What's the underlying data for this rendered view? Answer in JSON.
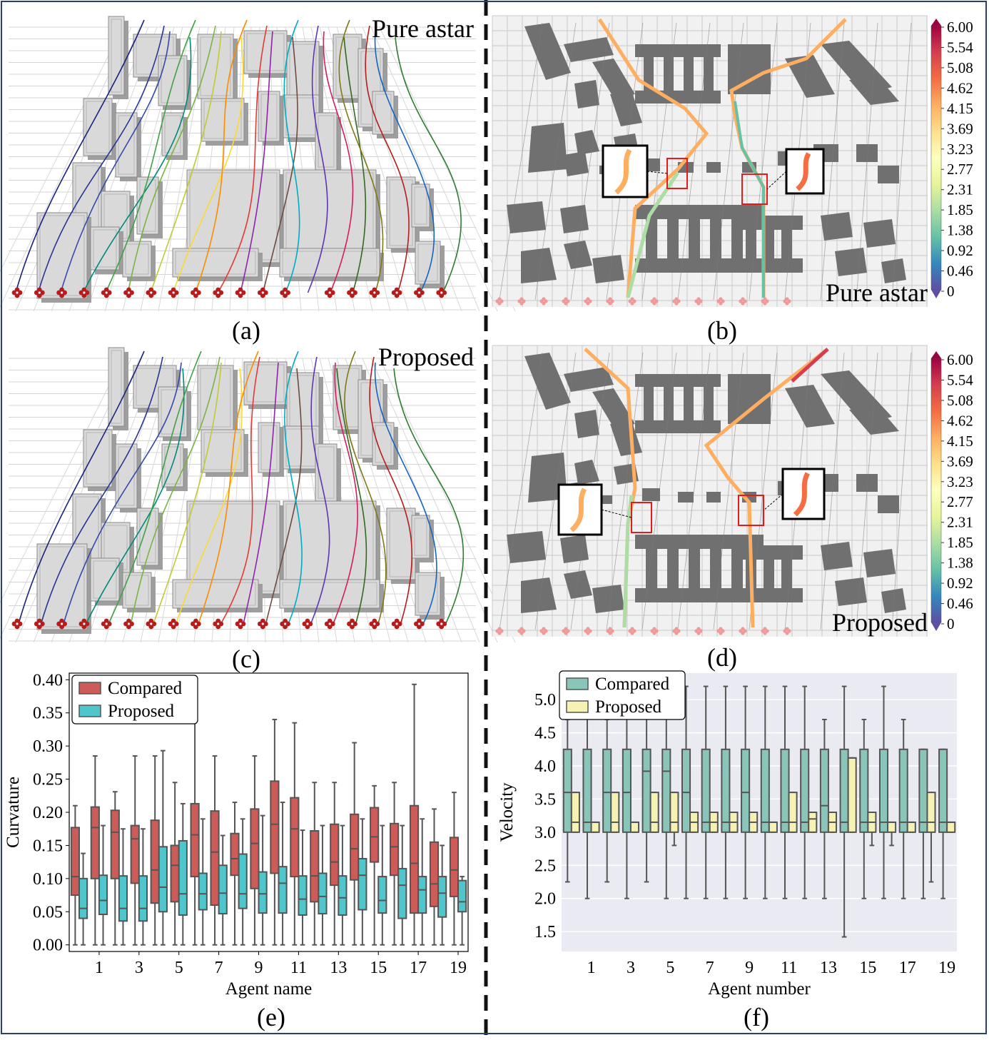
{
  "panels": {
    "a": {
      "caption": "(a)",
      "label": "Pure astar"
    },
    "b": {
      "caption": "(b)",
      "label": "Pure astar"
    },
    "c": {
      "caption": "(c)",
      "label": "Proposed"
    },
    "d": {
      "caption": "(d)",
      "label": "Proposed"
    },
    "e": {
      "caption": "(e)"
    },
    "f": {
      "caption": "(f)"
    }
  },
  "colorbar": {
    "ticks": [
      "6.00",
      "5.54",
      "5.08",
      "4.62",
      "4.15",
      "3.69",
      "3.23",
      "2.77",
      "2.31",
      "1.85",
      "1.38",
      "0.92",
      "0.46",
      "0"
    ],
    "colors": [
      "#9e0142",
      "#d53e4f",
      "#f46d43",
      "#fdae61",
      "#fee08b",
      "#ffffbf",
      "#e6f598",
      "#abdda4",
      "#66c2a5",
      "#3288bd",
      "#5e4fa2"
    ]
  },
  "chart_data": [
    {
      "type": "box",
      "panel": "e",
      "xlabel": "Agent name",
      "ylabel": "Curvature",
      "ylim": [
        -0.01,
        0.41
      ],
      "yticks": [
        "0.00",
        "0.05",
        "0.10",
        "0.15",
        "0.20",
        "0.25",
        "0.30",
        "0.35",
        "0.40"
      ],
      "xticks": [
        "1",
        "3",
        "5",
        "7",
        "9",
        "11",
        "13",
        "15",
        "17",
        "19"
      ],
      "legend_position": "top-left",
      "colors": {
        "Compared": "#cd5b57",
        "Proposed": "#4ec6cc"
      },
      "series": [
        {
          "name": "Compared",
          "boxes": [
            [
              0,
              0.075,
              0.103,
              0.177,
              0.21
            ],
            [
              0,
              0.1,
              0.177,
              0.208,
              0.285
            ],
            [
              0,
              0.1,
              0.17,
              0.203,
              0.231
            ],
            [
              0,
              0.093,
              0.16,
              0.18,
              0.285
            ],
            [
              0,
              0.063,
              0.113,
              0.188,
              0.285
            ],
            [
              0,
              0.065,
              0.12,
              0.15,
              0.245
            ],
            [
              0,
              0.103,
              0.166,
              0.213,
              0.375
            ],
            [
              0,
              0.06,
              0.14,
              0.202,
              0.285
            ],
            [
              0,
              0.105,
              0.13,
              0.168,
              0.215
            ],
            [
              0,
              0.085,
              0.153,
              0.205,
              0.285
            ],
            [
              0,
              0.108,
              0.182,
              0.247,
              0.34
            ],
            [
              0,
              0.103,
              0.175,
              0.222,
              0.335
            ],
            [
              0,
              0.065,
              0.104,
              0.172,
              0.245
            ],
            [
              0,
              0.09,
              0.125,
              0.182,
              0.245
            ],
            [
              0,
              0.098,
              0.145,
              0.197,
              0.305
            ],
            [
              0,
              0.125,
              0.163,
              0.207,
              0.24
            ],
            [
              0,
              0.105,
              0.148,
              0.183,
              0.245
            ],
            [
              0,
              0.048,
              0.123,
              0.21,
              0.393
            ],
            [
              0,
              0.058,
              0.092,
              0.155,
              0.205
            ],
            [
              0,
              0.073,
              0.113,
              0.162,
              0.23
            ]
          ]
        },
        {
          "name": "Proposed",
          "boxes": [
            [
              0,
              0.04,
              0.055,
              0.1,
              0.138
            ],
            [
              0,
              0.046,
              0.067,
              0.105,
              0.18
            ],
            [
              0,
              0.036,
              0.055,
              0.104,
              0.175
            ],
            [
              0,
              0.036,
              0.055,
              0.104,
              0.175
            ],
            [
              0,
              0.05,
              0.087,
              0.148,
              0.293
            ],
            [
              0,
              0.045,
              0.077,
              0.157,
              0.213
            ],
            [
              0,
              0.053,
              0.077,
              0.108,
              0.19
            ],
            [
              0,
              0.047,
              0.078,
              0.12,
              0.165
            ],
            [
              0,
              0.055,
              0.077,
              0.137,
              0.19
            ],
            [
              0,
              0.048,
              0.077,
              0.11,
              0.195
            ],
            [
              0,
              0.048,
              0.093,
              0.118,
              0.215
            ],
            [
              0,
              0.045,
              0.069,
              0.104,
              0.173
            ],
            [
              0,
              0.047,
              0.073,
              0.108,
              0.18
            ],
            [
              0,
              0.045,
              0.071,
              0.104,
              0.18
            ],
            [
              0,
              0.053,
              0.105,
              0.13,
              0.19
            ],
            [
              0,
              0.048,
              0.067,
              0.103,
              0.18
            ],
            [
              0,
              0.04,
              0.09,
              0.115,
              0.18
            ],
            [
              0,
              0.048,
              0.083,
              0.103,
              0.19
            ],
            [
              0,
              0.042,
              0.078,
              0.103,
              0.15
            ],
            [
              0,
              0.05,
              0.065,
              0.097,
              0.103
            ]
          ]
        }
      ]
    },
    {
      "type": "box",
      "panel": "f",
      "xlabel": "Agent number",
      "ylabel": "Velocity",
      "ylim": [
        1.2,
        5.4
      ],
      "yticks": [
        "1.5",
        "2.0",
        "2.5",
        "3.0",
        "3.5",
        "4.0",
        "4.5",
        "5.0"
      ],
      "xticks": [
        "1",
        "3",
        "5",
        "7",
        "9",
        "11",
        "13",
        "15",
        "17",
        "19"
      ],
      "legend_position": "top-left",
      "colors": {
        "Compared": "#8ac5b9",
        "Proposed": "#f6f2b4"
      },
      "series": [
        {
          "name": "Compared",
          "boxes": [
            [
              2.25,
              3.0,
              3.6,
              4.25,
              4.7
            ],
            [
              2.0,
              3.0,
              3.15,
              4.25,
              5.2
            ],
            [
              2.25,
              3.0,
              3.6,
              4.25,
              4.7
            ],
            [
              2.0,
              3.0,
              3.6,
              4.25,
              5.2
            ],
            [
              2.25,
              3.0,
              3.92,
              4.25,
              5.2
            ],
            [
              2.0,
              3.0,
              3.92,
              4.25,
              5.2
            ],
            [
              2.0,
              3.0,
              3.6,
              4.25,
              5.2
            ],
            [
              2.0,
              3.0,
              3.15,
              4.25,
              5.2
            ],
            [
              2.0,
              3.0,
              3.15,
              4.25,
              5.2
            ],
            [
              2.0,
              3.0,
              3.6,
              4.25,
              5.2
            ],
            [
              2.0,
              3.0,
              3.15,
              4.25,
              5.2
            ],
            [
              2.0,
              3.0,
              3.15,
              4.25,
              5.2
            ],
            [
              2.0,
              3.0,
              3.15,
              4.25,
              5.2
            ],
            [
              2.0,
              3.0,
              3.4,
              4.25,
              4.7
            ],
            [
              1.42,
              3.0,
              3.15,
              4.25,
              5.2
            ],
            [
              2.0,
              3.0,
              3.15,
              4.25,
              4.7
            ],
            [
              2.0,
              3.0,
              3.15,
              4.25,
              5.2
            ],
            [
              2.0,
              3.0,
              3.15,
              4.25,
              4.7
            ],
            [
              2.0,
              3.0,
              3.15,
              4.25,
              4.25
            ],
            [
              2.0,
              3.0,
              3.15,
              4.25,
              4.25
            ]
          ]
        },
        {
          "name": "Proposed",
          "boxes": [
            [
              3.0,
              3.0,
              3.15,
              3.6,
              3.6
            ],
            [
              3.0,
              3.0,
              3.15,
              3.15,
              3.15
            ],
            [
              3.0,
              3.0,
              3.15,
              3.6,
              3.6
            ],
            [
              3.0,
              3.0,
              3.15,
              3.15,
              3.15
            ],
            [
              3.0,
              3.0,
              3.15,
              3.6,
              3.6
            ],
            [
              2.8,
              3.0,
              3.15,
              3.6,
              3.6
            ],
            [
              3.0,
              3.0,
              3.15,
              3.3,
              3.3
            ],
            [
              3.0,
              3.0,
              3.15,
              3.3,
              3.3
            ],
            [
              3.0,
              3.0,
              3.15,
              3.3,
              3.3
            ],
            [
              3.0,
              3.0,
              3.15,
              3.3,
              3.3
            ],
            [
              3.0,
              3.0,
              3.15,
              3.15,
              3.15
            ],
            [
              3.0,
              3.0,
              3.15,
              3.6,
              3.6
            ],
            [
              3.0,
              3.0,
              3.2,
              3.3,
              3.3
            ],
            [
              3.0,
              3.0,
              3.15,
              3.3,
              3.3
            ],
            [
              3.0,
              3.0,
              4.12,
              4.12,
              4.12
            ],
            [
              2.8,
              3.0,
              3.15,
              3.3,
              3.3
            ],
            [
              2.8,
              3.0,
              3.15,
              3.15,
              3.15
            ],
            [
              3.0,
              3.0,
              3.15,
              3.15,
              3.15
            ],
            [
              2.25,
              3.0,
              3.15,
              3.6,
              3.6
            ],
            [
              3.0,
              3.0,
              3.15,
              3.15,
              3.15
            ]
          ]
        }
      ]
    }
  ]
}
